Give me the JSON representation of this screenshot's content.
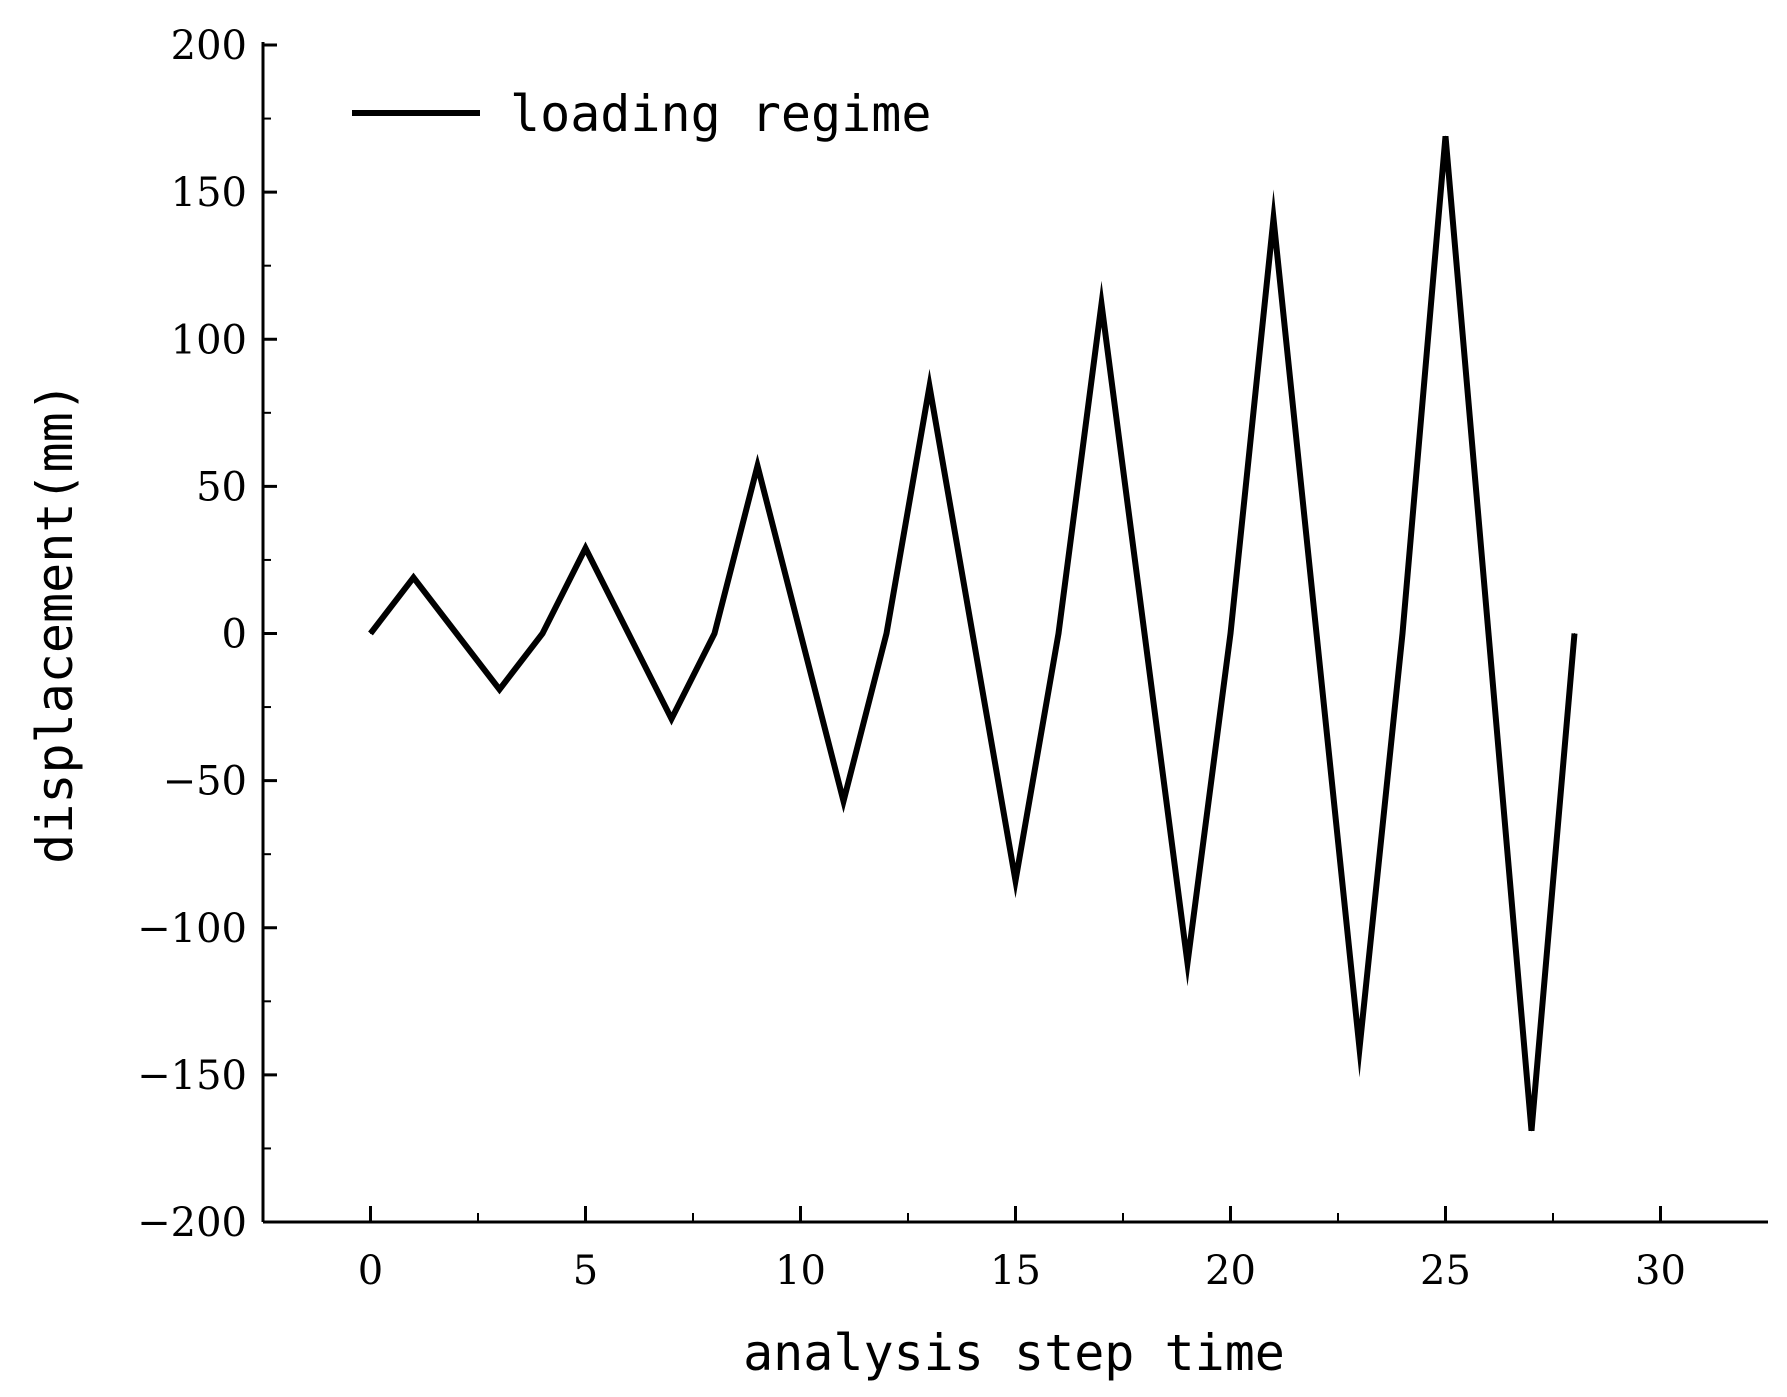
{
  "chart_data": {
    "type": "line",
    "xlabel": "analysis step time",
    "ylabel": "displacement(mm)",
    "xlim": [
      -2.5,
      32.5
    ],
    "ylim": [
      -200,
      200
    ],
    "x_ticks": [
      0,
      5,
      10,
      15,
      20,
      25,
      30
    ],
    "x_tick_labels": [
      "0",
      "5",
      "10",
      "15",
      "20",
      "25",
      "30"
    ],
    "y_ticks": [
      -200,
      -150,
      -100,
      -50,
      0,
      50,
      100,
      150,
      200
    ],
    "y_tick_labels": [
      "−200",
      "−150",
      "−100",
      "−50",
      "0",
      "50",
      "100",
      "150",
      "200"
    ],
    "legend_position": "top-left",
    "grid": false,
    "series": [
      {
        "name": "loading regime",
        "color": "#000000",
        "x": [
          0,
          1,
          2,
          3,
          4,
          5,
          6,
          7,
          8,
          9,
          10,
          11,
          12,
          13,
          14,
          15,
          16,
          17,
          18,
          19,
          20,
          21,
          22,
          23,
          24,
          25,
          26,
          27,
          28
        ],
        "y": [
          0,
          19,
          0,
          -19,
          0,
          29,
          0,
          -29,
          0,
          57,
          0,
          -57,
          0,
          84,
          0,
          -84,
          0,
          112,
          0,
          -112,
          0,
          141,
          0,
          -141,
          0,
          169,
          0,
          -169,
          0
        ]
      }
    ]
  }
}
